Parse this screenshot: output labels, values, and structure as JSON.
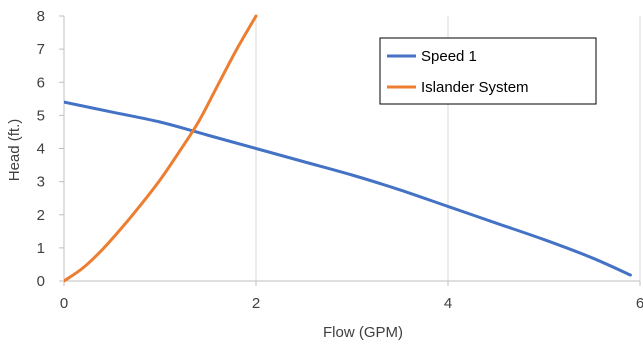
{
  "chart_data": {
    "type": "line",
    "title": "",
    "xlabel": "Flow (GPM)",
    "ylabel": "Head (ft.)",
    "xlim": [
      0,
      6
    ],
    "ylim": [
      0,
      8
    ],
    "x_ticks": [
      "0",
      "2",
      "4",
      "6"
    ],
    "y_ticks": [
      "0",
      "1",
      "2",
      "3",
      "4",
      "5",
      "6",
      "7",
      "8"
    ],
    "grid": "vertical",
    "legend_position": "top-right",
    "series": [
      {
        "name": "Speed 1",
        "color": "#4472C4",
        "x": [
          0,
          0.5,
          1,
          1.5,
          2,
          2.5,
          3,
          3.5,
          4,
          4.5,
          5,
          5.5,
          5.9
        ],
        "y": [
          5.4,
          5.1,
          4.8,
          4.4,
          4.0,
          3.6,
          3.2,
          2.75,
          2.25,
          1.75,
          1.25,
          0.7,
          0.18
        ]
      },
      {
        "name": "Islander System",
        "color": "#ED7D31",
        "x": [
          0,
          0.2,
          0.4,
          0.6,
          0.8,
          1.0,
          1.2,
          1.4,
          1.6,
          1.8,
          2.0
        ],
        "y": [
          0,
          0.4,
          0.95,
          1.6,
          2.3,
          3.05,
          3.9,
          4.8,
          5.9,
          7.0,
          8.0
        ]
      }
    ]
  }
}
